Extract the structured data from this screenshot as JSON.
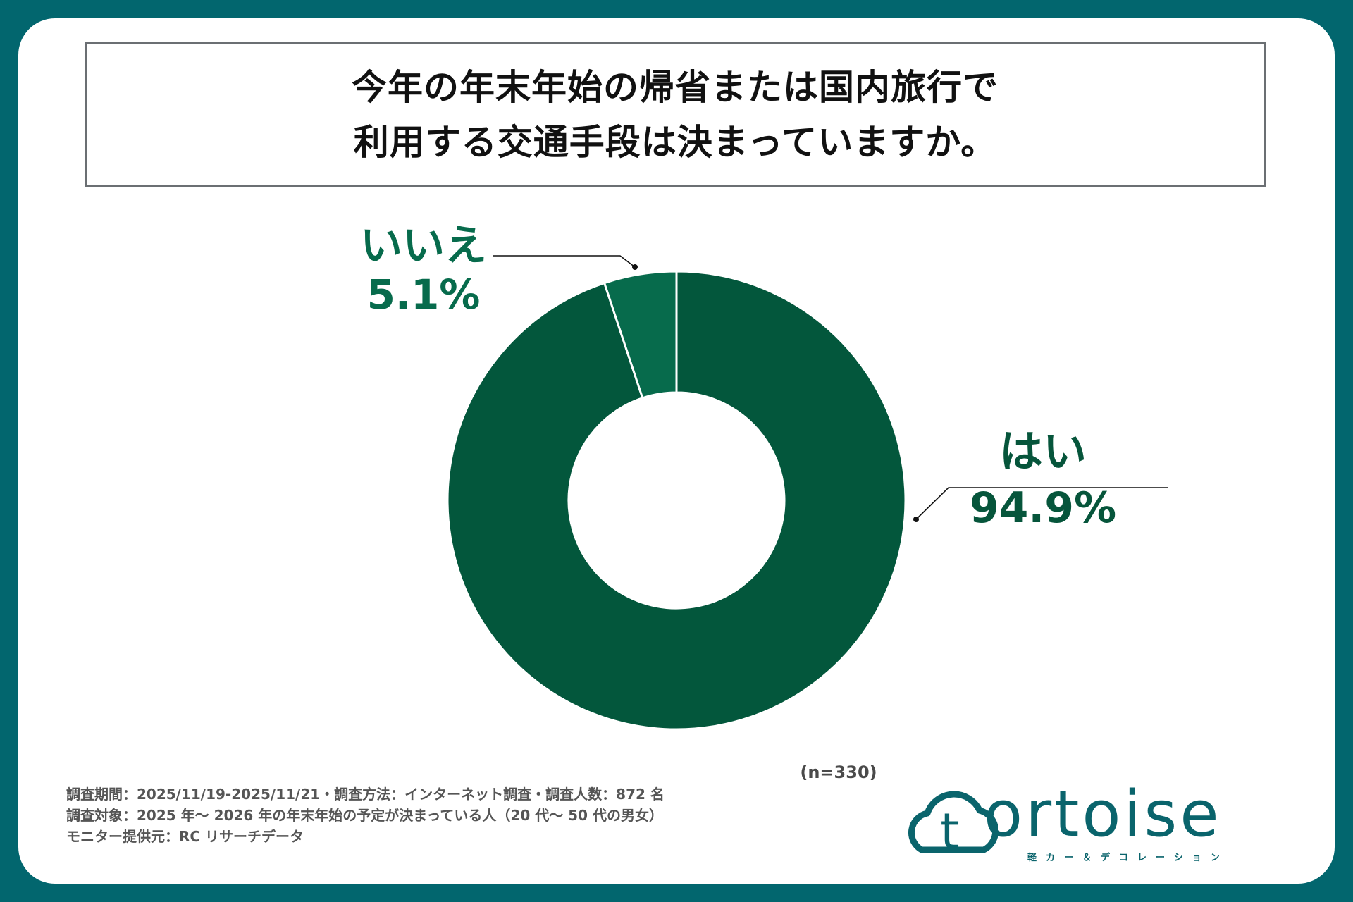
{
  "title": {
    "line1": "今年の年末年始の帰省または国内旅行で",
    "line2": "利用する交通手段は決まっていますか。"
  },
  "chart_data": {
    "type": "pie",
    "variant": "donut",
    "slices": [
      {
        "label": "はい",
        "value": 94.9,
        "display": "94.9%",
        "color": "#03573c"
      },
      {
        "label": "いいえ",
        "value": 5.1,
        "display": "5.1%",
        "color": "#076b4c"
      }
    ],
    "sample_note": "(n=330)"
  },
  "footnotes": [
    "調査期間：2025/11/19-2025/11/21・調査方法：インターネット調査・調査人数：872 名",
    "調査対象：2025 年～ 2026 年の年末年始の予定が決まっている人（20 代～ 50 代の男女）",
    "モニター提供元：RC リサーチデータ"
  ],
  "logo": {
    "word": "ortoise",
    "mark_letter": "t",
    "sub": "軽カー＆デコレーション"
  },
  "colors": {
    "background": "#02666e",
    "card": "#ffffff",
    "accent": "#03573c",
    "logo": "#0a646c"
  }
}
